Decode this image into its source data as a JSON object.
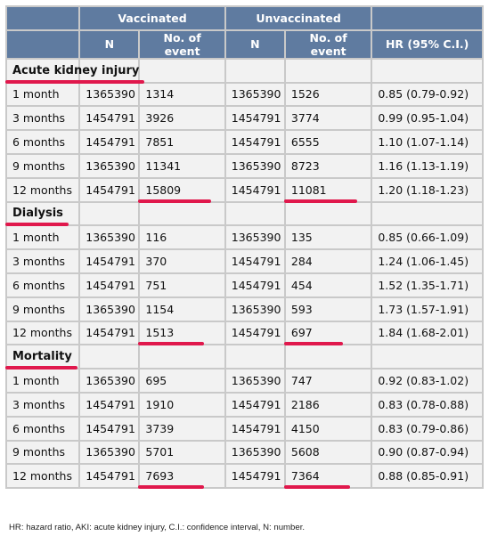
{
  "header": {
    "vaccinated": "Vaccinated",
    "unvaccinated": "Unvaccinated",
    "n": "N",
    "events": "No. of event",
    "hr": "HR (95% C.I.)"
  },
  "sections": [
    {
      "title": "Acute kidney injury",
      "rows": [
        {
          "period": "1 month",
          "vn": "1365390",
          "ve": "1314",
          "un": "1365390",
          "ue": "1526",
          "hr": "0.85 (0.79-0.92)"
        },
        {
          "period": "3 months",
          "vn": "1454791",
          "ve": "3926",
          "un": "1454791",
          "ue": "3774",
          "hr": "0.99 (0.95-1.04)"
        },
        {
          "period": "6 months",
          "vn": "1454791",
          "ve": "7851",
          "un": "1454791",
          "ue": "6555",
          "hr": "1.10 (1.07-1.14)"
        },
        {
          "period": "9 months",
          "vn": "1365390",
          "ve": "11341",
          "un": "1365390",
          "ue": "8723",
          "hr": "1.16 (1.13-1.19)"
        },
        {
          "period": "12 months",
          "vn": "1454791",
          "ve": "15809",
          "un": "1454791",
          "ue": "11081",
          "hr": "1.20 (1.18-1.23)"
        }
      ]
    },
    {
      "title": "Dialysis",
      "rows": [
        {
          "period": "1 month",
          "vn": "1365390",
          "ve": "116",
          "un": "1365390",
          "ue": "135",
          "hr": "0.85 (0.66-1.09)"
        },
        {
          "period": "3 months",
          "vn": "1454791",
          "ve": "370",
          "un": "1454791",
          "ue": "284",
          "hr": "1.24 (1.06-1.45)"
        },
        {
          "period": "6 months",
          "vn": "1454791",
          "ve": "751",
          "un": "1454791",
          "ue": "454",
          "hr": "1.52 (1.35-1.71)"
        },
        {
          "period": "9 months",
          "vn": "1365390",
          "ve": "1154",
          "un": "1365390",
          "ue": "593",
          "hr": "1.73 (1.57-1.91)"
        },
        {
          "period": "12 months",
          "vn": "1454791",
          "ve": "1513",
          "un": "1454791",
          "ue": "697",
          "hr": "1.84 (1.68-2.01)"
        }
      ]
    },
    {
      "title": "Mortality",
      "rows": [
        {
          "period": "1 month",
          "vn": "1365390",
          "ve": "695",
          "un": "1365390",
          "ue": "747",
          "hr": "0.92 (0.83-1.02)"
        },
        {
          "period": "3 months",
          "vn": "1454791",
          "ve": "1910",
          "un": "1454791",
          "ue": "2186",
          "hr": "0.83 (0.78-0.88)"
        },
        {
          "period": "6 months",
          "vn": "1454791",
          "ve": "3739",
          "un": "1454791",
          "ue": "4150",
          "hr": "0.83 (0.79-0.86)"
        },
        {
          "period": "9 months",
          "vn": "1365390",
          "ve": "5701",
          "un": "1365390",
          "ue": "5608",
          "hr": "0.90 (0.87-0.94)"
        },
        {
          "period": "12 months",
          "vn": "1454791",
          "ve": "7693",
          "un": "1454791",
          "ue": "7364",
          "hr": "0.88 (0.85-0.91)"
        }
      ]
    }
  ],
  "footnote": "HR: hazard ratio, AKI: acute kidney injury, C.I.: confidence interval, N: number.",
  "colors": {
    "header_bg": "#5f7ba0",
    "cell_bg": "#f2f2f2",
    "highlight": "#e0184c"
  }
}
